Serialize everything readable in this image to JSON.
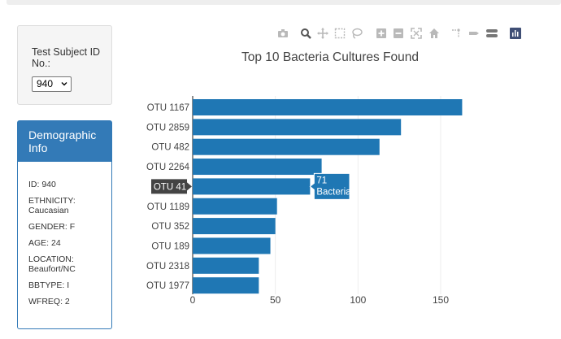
{
  "selector": {
    "label": "Test Subject ID No.:",
    "selected": "940"
  },
  "demographics": {
    "title": "Demographic Info",
    "lines": [
      "ID: 940",
      "ETHNICITY: Caucasian",
      "GENDER: F",
      "AGE: 24",
      "LOCATION: Beaufort/NC",
      "BBTYPE: I",
      "WFREQ: 2"
    ]
  },
  "modebar": {
    "icons": [
      "camera-icon",
      "zoom-icon",
      "pan-icon",
      "box-select-icon",
      "lasso-select-icon",
      "zoom-in-icon",
      "zoom-out-icon",
      "autoscale-icon",
      "reset-axes-icon",
      "spike-lines-icon",
      "hover-closest-icon",
      "hover-compare-icon",
      "plotly-logo-icon"
    ]
  },
  "hover": {
    "category": "OTU 41",
    "value_text": "71",
    "label_text": "Bacteria"
  },
  "chart_data": {
    "type": "bar",
    "orientation": "horizontal",
    "title": "Top 10 Bacteria Cultures Found",
    "categories": [
      "OTU 1167",
      "OTU 2859",
      "OTU 482",
      "OTU 2264",
      "OTU 41",
      "OTU 1189",
      "OTU 352",
      "OTU 189",
      "OTU 2318",
      "OTU 1977"
    ],
    "values": [
      163,
      126,
      113,
      78,
      71,
      51,
      50,
      47,
      40,
      40
    ],
    "xticks": [
      0,
      50,
      100,
      150
    ],
    "xlim": [
      0,
      168
    ],
    "bar_color": "#1f77b4",
    "grid": true
  }
}
